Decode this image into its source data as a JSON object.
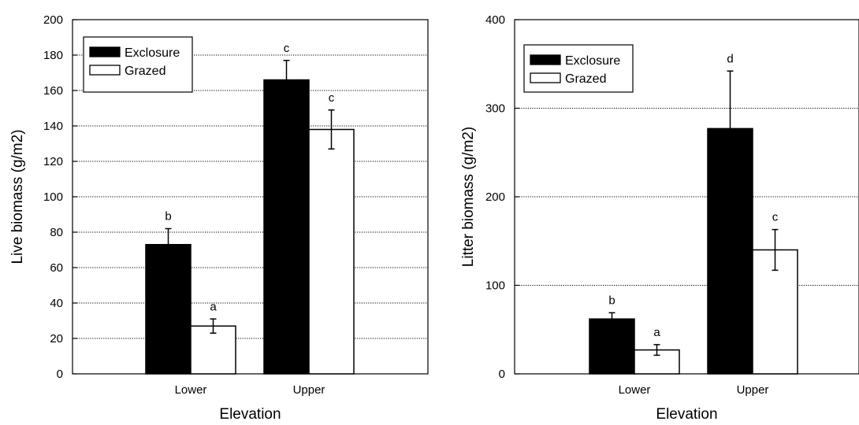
{
  "chart_data": [
    {
      "type": "bar",
      "title": "",
      "xlabel": "Elevation",
      "ylabel": "Live biomass (g/m2)",
      "ylim": [
        0,
        200
      ],
      "yticks": [
        0,
        20,
        40,
        60,
        80,
        100,
        120,
        140,
        160,
        180,
        200
      ],
      "grid": true,
      "legend_position": "top-left",
      "categories": [
        "Lower",
        "Upper"
      ],
      "series": [
        {
          "name": "Exclosure",
          "values": [
            73,
            166
          ],
          "errors": [
            9,
            11
          ],
          "letters": [
            "b",
            "c"
          ],
          "color": "#000000"
        },
        {
          "name": "Grazed",
          "values": [
            27,
            138
          ],
          "errors": [
            4,
            11
          ],
          "letters": [
            "a",
            "c"
          ],
          "color": "#ffffff"
        }
      ]
    },
    {
      "type": "bar",
      "title": "",
      "xlabel": "Elevation",
      "ylabel": "Litter biomass (g/m2)",
      "ylim": [
        0,
        400
      ],
      "yticks": [
        0,
        100,
        200,
        300,
        400
      ],
      "grid": true,
      "legend_position": "top-left",
      "categories": [
        "Lower",
        "Upper"
      ],
      "series": [
        {
          "name": "Exclosure",
          "values": [
            62,
            277
          ],
          "errors": [
            7,
            65
          ],
          "letters": [
            "b",
            "d"
          ],
          "color": "#000000"
        },
        {
          "name": "Grazed",
          "values": [
            27,
            140
          ],
          "errors": [
            6,
            23
          ],
          "letters": [
            "a",
            "c"
          ],
          "color": "#ffffff"
        }
      ]
    }
  ]
}
